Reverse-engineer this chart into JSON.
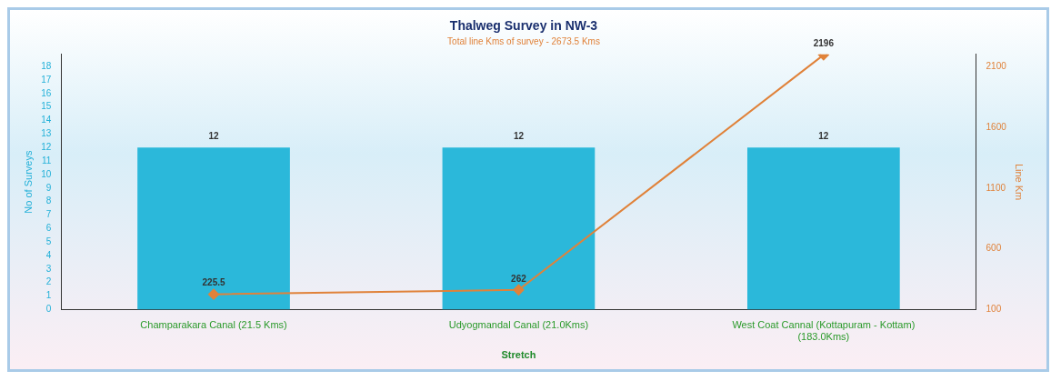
{
  "chart_data": {
    "type": "bar",
    "title": "Thalweg Survey in NW-3",
    "subtitle": "Total line Kms of survey - 2673.5 Kms",
    "xlabel": "Stretch",
    "ylabel": "No of Surveys",
    "y2label": "Line Km",
    "categories": [
      "Champarakara Canal (21.5 Kms)",
      "Udyogmandal Canal (21.0Kms)",
      "West Coat Cannal (Kottapuram - Kottam) (183.0Kms)"
    ],
    "series": [
      {
        "color": "#2bb8da",
        "values": [
          12,
          12,
          12
        ]
      },
      {
        "type": "line",
        "axis": "y2",
        "color": "#e0823a",
        "values": [
          225.5,
          262,
          2196
        ]
      }
    ],
    "ylim": [
      0,
      18.9
    ],
    "yticks": [
      0,
      1,
      2,
      3,
      4,
      5,
      6,
      7,
      8,
      9,
      10,
      11,
      12,
      13,
      14,
      15,
      16,
      17,
      18
    ],
    "y2lim": [
      100,
      2200
    ],
    "y2ticks": [
      100,
      600,
      1100,
      1600,
      2100
    ],
    "data_labels": true,
    "grid": false,
    "legend": false,
    "marker": "diamond"
  }
}
